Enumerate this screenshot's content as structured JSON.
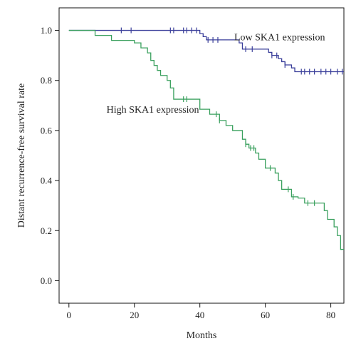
{
  "chart_data": {
    "type": "line",
    "title": "",
    "xlabel": "Months",
    "ylabel": "Distant recurrence-free survival rate",
    "xlim": [
      -3,
      84
    ],
    "ylim": [
      -0.09,
      1.09
    ],
    "x_ticks": [
      0,
      20,
      40,
      60,
      80
    ],
    "y_ticks": [
      0.0,
      0.2,
      0.4,
      0.6,
      0.8,
      1.0
    ],
    "x_tick_labels": [
      "0",
      "20",
      "40",
      "60",
      "80"
    ],
    "y_tick_labels": [
      "0.0",
      "0.2",
      "0.4",
      "0.6",
      "0.8",
      "1.0"
    ],
    "grid": false,
    "series": [
      {
        "name": "Low SKA1 expression",
        "color": "#3a3f9a",
        "steps": [
          [
            0,
            1.0
          ],
          [
            40,
            0.987
          ],
          [
            41,
            0.975
          ],
          [
            42,
            0.962
          ],
          [
            48,
            0.962
          ],
          [
            52,
            0.95
          ],
          [
            53,
            0.925
          ],
          [
            58,
            0.925
          ],
          [
            61,
            0.912
          ],
          [
            62,
            0.9
          ],
          [
            64,
            0.887
          ],
          [
            65,
            0.875
          ],
          [
            66,
            0.862
          ],
          [
            68,
            0.85
          ],
          [
            69,
            0.835
          ],
          [
            84,
            0.835
          ]
        ],
        "censor_x": [
          16,
          19,
          31,
          32,
          35,
          36,
          37.5,
          39,
          42.5,
          44,
          45.5,
          54,
          56,
          62,
          63.5,
          66,
          71,
          72,
          73.5,
          75,
          77,
          78.5,
          80,
          82,
          83.5
        ]
      },
      {
        "name": "High SKA1 expression",
        "color": "#3aa05e",
        "steps": [
          [
            0,
            1.0
          ],
          [
            8,
            0.98
          ],
          [
            13,
            0.96
          ],
          [
            20,
            0.95
          ],
          [
            22,
            0.93
          ],
          [
            24,
            0.91
          ],
          [
            25,
            0.88
          ],
          [
            26,
            0.86
          ],
          [
            27,
            0.84
          ],
          [
            28,
            0.82
          ],
          [
            30,
            0.8
          ],
          [
            31,
            0.77
          ],
          [
            32,
            0.725
          ],
          [
            40,
            0.685
          ],
          [
            43,
            0.665
          ],
          [
            46,
            0.64
          ],
          [
            48,
            0.62
          ],
          [
            50,
            0.6
          ],
          [
            53,
            0.565
          ],
          [
            54,
            0.545
          ],
          [
            55,
            0.53
          ],
          [
            57,
            0.51
          ],
          [
            58,
            0.485
          ],
          [
            60,
            0.45
          ],
          [
            63,
            0.43
          ],
          [
            64,
            0.4
          ],
          [
            65,
            0.365
          ],
          [
            68,
            0.335
          ],
          [
            70,
            0.33
          ],
          [
            72,
            0.31
          ],
          [
            76,
            0.31
          ],
          [
            78,
            0.28
          ],
          [
            79,
            0.245
          ],
          [
            81,
            0.215
          ],
          [
            82,
            0.18
          ],
          [
            83,
            0.125
          ],
          [
            84,
            0.125
          ]
        ],
        "censor_x": [
          35,
          36,
          45,
          46,
          54,
          55.5,
          56.5,
          61.5,
          67,
          68.5,
          73,
          75
        ]
      }
    ],
    "annotations": [
      {
        "text": "Low SKA1 expression",
        "x": 50.5,
        "y": 0.975,
        "series": 0
      },
      {
        "text": "High SKA1 expression",
        "x": 11.5,
        "y": 0.685,
        "series": 1
      }
    ]
  }
}
